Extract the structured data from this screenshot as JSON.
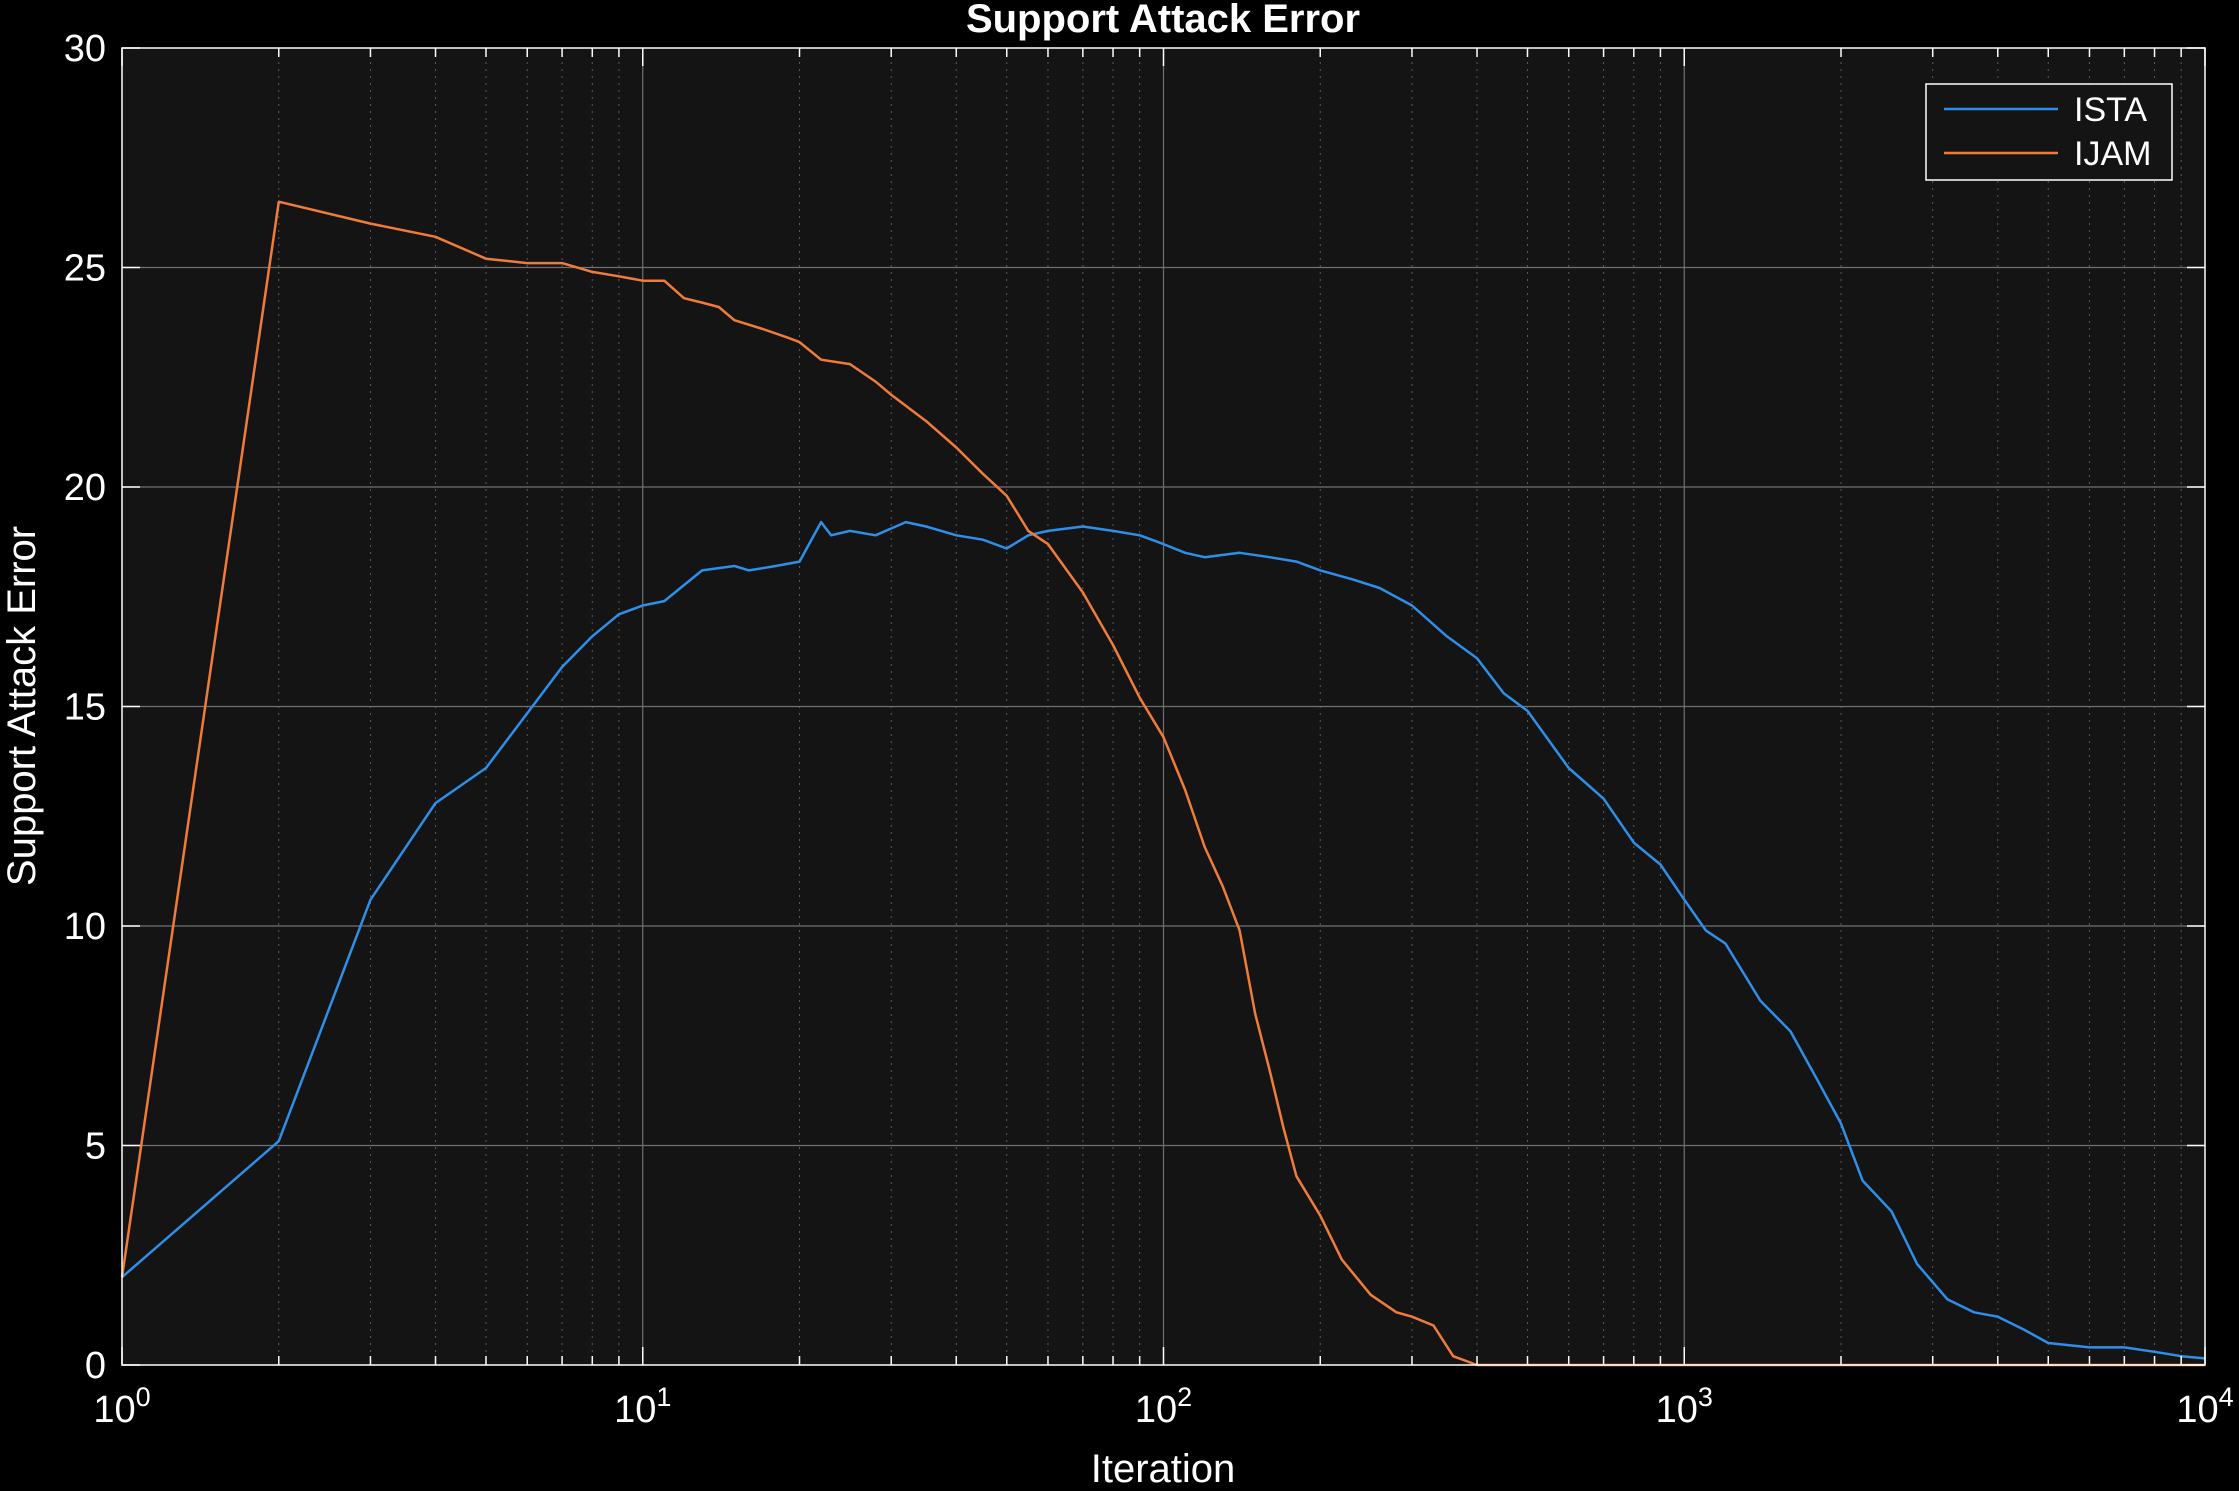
{
  "chart_data": {
    "type": "line",
    "title": "Support Attack Error",
    "xlabel": "Iteration",
    "ylabel": "Support Attack Error",
    "xscale": "log",
    "xlim": [
      1,
      10000
    ],
    "ylim": [
      0,
      30
    ],
    "x_ticks": [
      {
        "base": "10",
        "exp": "0",
        "value": 1
      },
      {
        "base": "10",
        "exp": "1",
        "value": 10
      },
      {
        "base": "10",
        "exp": "2",
        "value": 100
      },
      {
        "base": "10",
        "exp": "3",
        "value": 1000
      },
      {
        "base": "10",
        "exp": "4",
        "value": 10000
      }
    ],
    "y_ticks": [
      "0",
      "5",
      "10",
      "15",
      "20",
      "25",
      "30"
    ],
    "grid": true,
    "minor_grid_x": true,
    "legend_position": "top-right",
    "background": "#141414",
    "axis_color": "#ffffff",
    "series": [
      {
        "name": "ISTA",
        "color": "#2f8fe8",
        "x": [
          1,
          2,
          3,
          4,
          5,
          7,
          8,
          9,
          10,
          11,
          13,
          15,
          16,
          18,
          20,
          22,
          23,
          25,
          28,
          32,
          35,
          40,
          45,
          50,
          55,
          60,
          70,
          80,
          90,
          100,
          110,
          120,
          140,
          160,
          180,
          200,
          230,
          260,
          300,
          350,
          400,
          450,
          500,
          600,
          700,
          800,
          900,
          1000,
          1100,
          1200,
          1400,
          1600,
          1800,
          2000,
          2200,
          2500,
          2800,
          3200,
          3600,
          4000,
          4500,
          5000,
          6000,
          7000,
          8000,
          9000,
          10000
        ],
        "values": [
          2.0,
          5.1,
          10.6,
          12.8,
          13.6,
          15.9,
          16.6,
          17.1,
          17.3,
          17.4,
          18.1,
          18.2,
          18.1,
          18.2,
          18.3,
          19.2,
          18.9,
          19.0,
          18.9,
          19.2,
          19.1,
          18.9,
          18.8,
          18.6,
          18.9,
          19.0,
          19.1,
          19.0,
          18.9,
          18.7,
          18.5,
          18.4,
          18.5,
          18.4,
          18.3,
          18.1,
          17.9,
          17.7,
          17.3,
          16.6,
          16.1,
          15.3,
          14.9,
          13.6,
          12.9,
          11.9,
          11.4,
          10.6,
          9.9,
          9.6,
          8.3,
          7.6,
          6.5,
          5.5,
          4.2,
          3.5,
          2.3,
          1.5,
          1.2,
          1.1,
          0.8,
          0.5,
          0.4,
          0.4,
          0.3,
          0.2,
          0.15
        ]
      },
      {
        "name": "IJAM",
        "color": "#f07c3a",
        "x": [
          1,
          2,
          3,
          4,
          5,
          6,
          7,
          8,
          9,
          10,
          11,
          12,
          13,
          14,
          15,
          17,
          19,
          20,
          22,
          25,
          28,
          30,
          35,
          40,
          45,
          50,
          55,
          60,
          70,
          80,
          90,
          100,
          110,
          120,
          130,
          140,
          150,
          160,
          170,
          180,
          200,
          220,
          250,
          280,
          300,
          330,
          360,
          400,
          450,
          500,
          1000,
          2000,
          5000,
          10000
        ],
        "values": [
          2.0,
          26.5,
          26.0,
          25.7,
          25.2,
          25.1,
          25.1,
          24.9,
          24.8,
          24.7,
          24.7,
          24.3,
          24.2,
          24.1,
          23.8,
          23.6,
          23.4,
          23.3,
          22.9,
          22.8,
          22.4,
          22.1,
          21.5,
          20.9,
          20.3,
          19.8,
          19.0,
          18.7,
          17.6,
          16.4,
          15.2,
          14.3,
          13.1,
          11.8,
          10.9,
          9.9,
          8.0,
          6.7,
          5.4,
          4.3,
          3.4,
          2.4,
          1.6,
          1.2,
          1.1,
          0.9,
          0.2,
          0.0,
          0.0,
          0.0,
          0.0,
          0.0,
          0.0,
          0.0
        ]
      }
    ]
  }
}
